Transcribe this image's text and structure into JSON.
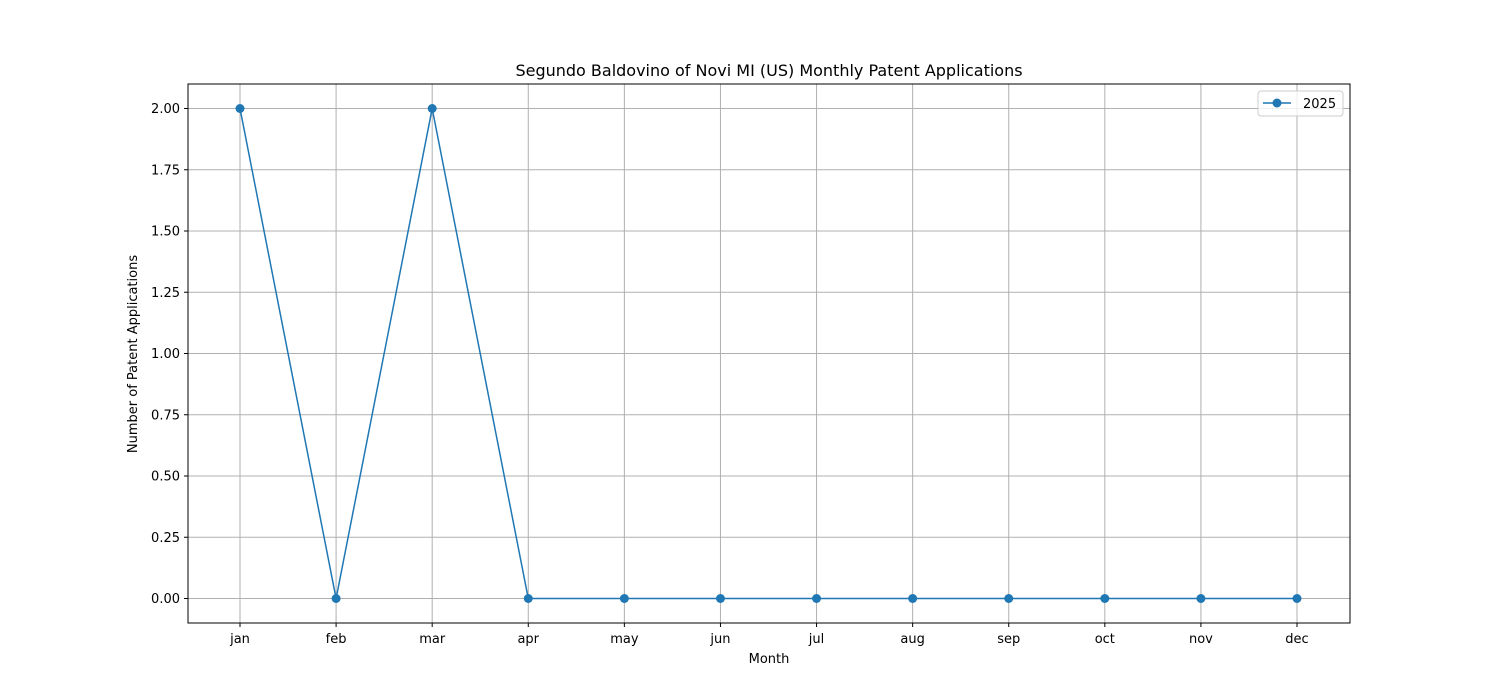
{
  "chart_data": {
    "type": "line",
    "title": "Segundo Baldovino of Novi MI (US) Monthly Patent Applications",
    "xlabel": "Month",
    "ylabel": "Number of Patent Applications",
    "categories": [
      "jan",
      "feb",
      "mar",
      "apr",
      "may",
      "jun",
      "jul",
      "aug",
      "sep",
      "oct",
      "nov",
      "dec"
    ],
    "series": [
      {
        "name": "2025",
        "values": [
          2,
          0,
          2,
          0,
          0,
          0,
          0,
          0,
          0,
          0,
          0,
          0
        ],
        "color": "#1f77b4",
        "marker": "circle"
      }
    ],
    "ylim": [
      -0.1,
      2.1
    ],
    "yticks": [
      "0.00",
      "0.25",
      "0.50",
      "0.75",
      "1.00",
      "1.25",
      "1.50",
      "1.75",
      "2.00"
    ],
    "grid": true,
    "legend_position": "top-right"
  }
}
